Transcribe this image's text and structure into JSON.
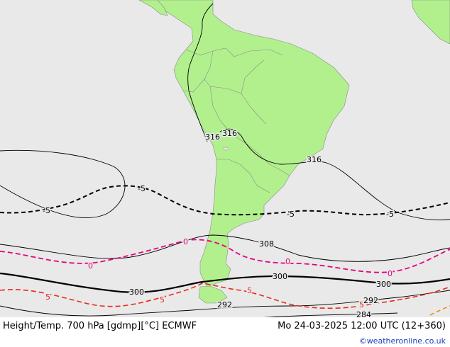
{
  "footer": {
    "product": "Height/Temp. 700 hPa [gdmp][°C] ECMWF",
    "valid_time": "Mo 24-03-2025 12:00 UTC (12+360)",
    "credit": "©weatheronline.co.uk"
  },
  "colors": {
    "ocean": "#e9e9e9",
    "land": "#b2f08e",
    "height_contour": "#000000",
    "temp_minus5": "#000000",
    "temp_0": "#e6007e",
    "temp_5": "#e8291c",
    "temp_10": "#f08a14"
  },
  "contour_labels": {
    "h316_a": "316",
    "h316_b": "316",
    "h316_c": "316",
    "h308": "308",
    "h300_a": "300",
    "h300_b": "300",
    "h300_c": "300",
    "h292_a": "292",
    "h292_b": "292",
    "h284": "284",
    "t_m5_a": "-5",
    "t_m5_b": "-5",
    "t_m5_c": "-5",
    "t_m5_d": "-5",
    "t_0_a": "0",
    "t_0_b": "0",
    "t_0_c": "0",
    "t_0_d": "0",
    "t_5_a": "5",
    "t_5_b": "5",
    "t_5_c": "5",
    "t_5_d": "5"
  }
}
